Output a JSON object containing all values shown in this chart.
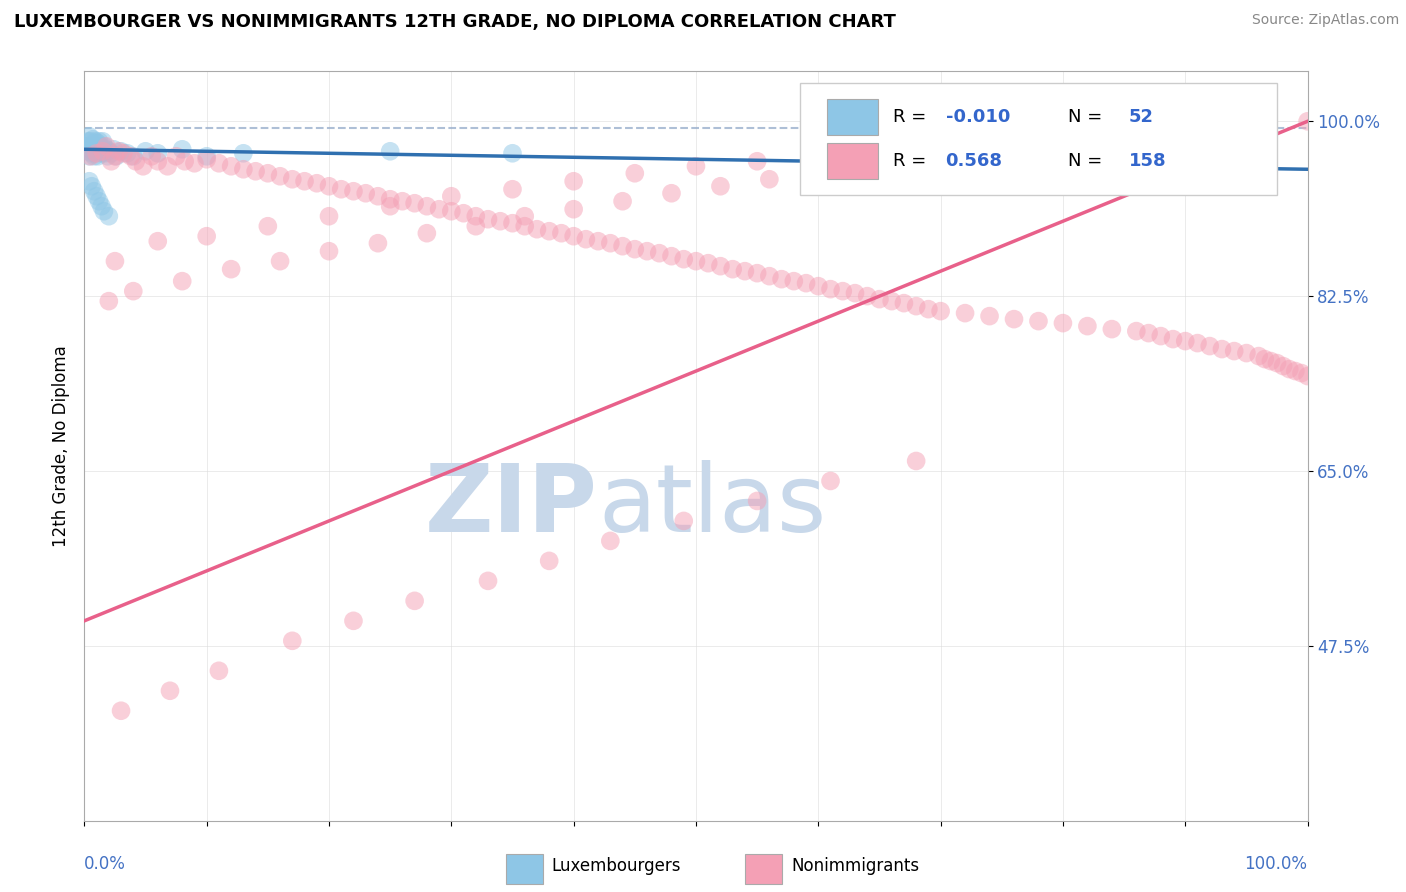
{
  "title": "LUXEMBOURGER VS NONIMMIGRANTS 12TH GRADE, NO DIPLOMA CORRELATION CHART",
  "source_text": "Source: ZipAtlas.com",
  "ylabel": "12th Grade, No Diploma",
  "xlim": [
    0.0,
    1.0
  ],
  "ylim": [
    0.3,
    1.05
  ],
  "yticks": [
    0.475,
    0.65,
    0.825,
    1.0
  ],
  "ytick_labels": [
    "47.5%",
    "65.0%",
    "82.5%",
    "100.0%"
  ],
  "legend_r_blue": "-0.010",
  "legend_n_blue": "52",
  "legend_r_pink": "0.568",
  "legend_n_pink": "158",
  "blue_color": "#8ec6e6",
  "pink_color": "#f4a0b5",
  "trend_blue_color": "#3070b0",
  "trend_pink_color": "#e8608a",
  "dashed_line_y": 0.993,
  "watermark_text_zip": "ZIP",
  "watermark_text_atlas": "atlas",
  "watermark_color": "#c8d8ea",
  "blue_scatter_x": [
    0.002,
    0.003,
    0.003,
    0.004,
    0.004,
    0.005,
    0.005,
    0.006,
    0.006,
    0.007,
    0.007,
    0.008,
    0.008,
    0.009,
    0.009,
    0.01,
    0.01,
    0.011,
    0.011,
    0.012,
    0.012,
    0.013,
    0.013,
    0.014,
    0.015,
    0.015,
    0.016,
    0.017,
    0.018,
    0.019,
    0.02,
    0.022,
    0.024,
    0.026,
    0.03,
    0.035,
    0.04,
    0.05,
    0.06,
    0.08,
    0.1,
    0.13,
    0.004,
    0.006,
    0.008,
    0.01,
    0.012,
    0.014,
    0.016,
    0.02,
    0.25,
    0.35
  ],
  "blue_scatter_y": [
    0.975,
    0.98,
    0.97,
    0.985,
    0.965,
    0.98,
    0.972,
    0.975,
    0.968,
    0.982,
    0.97,
    0.975,
    0.965,
    0.98,
    0.968,
    0.975,
    0.972,
    0.978,
    0.965,
    0.972,
    0.98,
    0.97,
    0.975,
    0.968,
    0.98,
    0.972,
    0.975,
    0.968,
    0.972,
    0.965,
    0.97,
    0.968,
    0.972,
    0.965,
    0.97,
    0.968,
    0.965,
    0.97,
    0.968,
    0.972,
    0.965,
    0.968,
    0.94,
    0.935,
    0.93,
    0.925,
    0.92,
    0.915,
    0.91,
    0.905,
    0.97,
    0.968
  ],
  "pink_scatter_x": [
    0.005,
    0.01,
    0.015,
    0.018,
    0.022,
    0.025,
    0.028,
    0.032,
    0.038,
    0.042,
    0.048,
    0.055,
    0.06,
    0.068,
    0.075,
    0.082,
    0.09,
    0.1,
    0.11,
    0.12,
    0.13,
    0.14,
    0.15,
    0.16,
    0.17,
    0.18,
    0.19,
    0.2,
    0.21,
    0.22,
    0.23,
    0.24,
    0.25,
    0.26,
    0.27,
    0.28,
    0.29,
    0.3,
    0.31,
    0.32,
    0.33,
    0.34,
    0.35,
    0.36,
    0.37,
    0.38,
    0.39,
    0.4,
    0.41,
    0.42,
    0.43,
    0.44,
    0.45,
    0.46,
    0.47,
    0.48,
    0.49,
    0.5,
    0.51,
    0.52,
    0.53,
    0.54,
    0.55,
    0.56,
    0.57,
    0.58,
    0.59,
    0.6,
    0.61,
    0.62,
    0.63,
    0.64,
    0.65,
    0.66,
    0.67,
    0.68,
    0.69,
    0.7,
    0.72,
    0.74,
    0.76,
    0.78,
    0.8,
    0.82,
    0.84,
    0.86,
    0.87,
    0.88,
    0.89,
    0.9,
    0.91,
    0.92,
    0.93,
    0.94,
    0.95,
    0.96,
    0.965,
    0.97,
    0.975,
    0.98,
    0.985,
    0.99,
    0.995,
    1.0,
    0.025,
    0.06,
    0.1,
    0.15,
    0.2,
    0.25,
    0.3,
    0.35,
    0.4,
    0.45,
    0.5,
    0.55,
    0.6,
    0.65,
    0.7,
    0.75,
    0.8,
    0.85,
    0.9,
    0.95,
    0.02,
    0.04,
    0.08,
    0.12,
    0.16,
    0.2,
    0.24,
    0.28,
    0.32,
    0.36,
    0.4,
    0.44,
    0.48,
    0.52,
    0.56,
    0.6,
    0.64,
    0.68,
    0.72,
    0.76,
    0.8,
    0.84,
    0.88,
    0.92,
    0.96,
    1.0,
    0.03,
    0.07,
    0.11,
    0.17,
    0.22,
    0.27,
    0.33,
    0.38,
    0.43,
    0.49,
    0.55,
    0.61,
    0.68
  ],
  "pink_scatter_y": [
    0.965,
    0.968,
    0.97,
    0.975,
    0.96,
    0.965,
    0.97,
    0.968,
    0.965,
    0.96,
    0.955,
    0.965,
    0.96,
    0.955,
    0.965,
    0.96,
    0.958,
    0.962,
    0.958,
    0.955,
    0.952,
    0.95,
    0.948,
    0.945,
    0.942,
    0.94,
    0.938,
    0.935,
    0.932,
    0.93,
    0.928,
    0.925,
    0.922,
    0.92,
    0.918,
    0.915,
    0.912,
    0.91,
    0.908,
    0.905,
    0.902,
    0.9,
    0.898,
    0.895,
    0.892,
    0.89,
    0.888,
    0.885,
    0.882,
    0.88,
    0.878,
    0.875,
    0.872,
    0.87,
    0.868,
    0.865,
    0.862,
    0.86,
    0.858,
    0.855,
    0.852,
    0.85,
    0.848,
    0.845,
    0.842,
    0.84,
    0.838,
    0.835,
    0.832,
    0.83,
    0.828,
    0.825,
    0.822,
    0.82,
    0.818,
    0.815,
    0.812,
    0.81,
    0.808,
    0.805,
    0.802,
    0.8,
    0.798,
    0.795,
    0.792,
    0.79,
    0.788,
    0.785,
    0.782,
    0.78,
    0.778,
    0.775,
    0.772,
    0.77,
    0.768,
    0.765,
    0.762,
    0.76,
    0.758,
    0.755,
    0.752,
    0.75,
    0.748,
    0.745,
    0.86,
    0.88,
    0.885,
    0.895,
    0.905,
    0.915,
    0.925,
    0.932,
    0.94,
    0.948,
    0.955,
    0.96,
    0.965,
    0.97,
    0.975,
    0.978,
    0.982,
    0.985,
    0.99,
    0.995,
    0.82,
    0.83,
    0.84,
    0.852,
    0.86,
    0.87,
    0.878,
    0.888,
    0.895,
    0.905,
    0.912,
    0.92,
    0.928,
    0.935,
    0.942,
    0.95,
    0.955,
    0.962,
    0.968,
    0.975,
    0.98,
    0.985,
    0.99,
    0.995,
    0.998,
    1.0,
    0.41,
    0.43,
    0.45,
    0.48,
    0.5,
    0.52,
    0.54,
    0.56,
    0.58,
    0.6,
    0.62,
    0.64,
    0.66
  ],
  "blue_trend_x": [
    0.0,
    1.0
  ],
  "blue_trend_y": [
    0.972,
    0.952
  ],
  "pink_trend_x": [
    0.0,
    1.0
  ],
  "pink_trend_y": [
    0.5,
    1.0
  ],
  "grid_color": "#dddddd",
  "background_color": "#ffffff"
}
